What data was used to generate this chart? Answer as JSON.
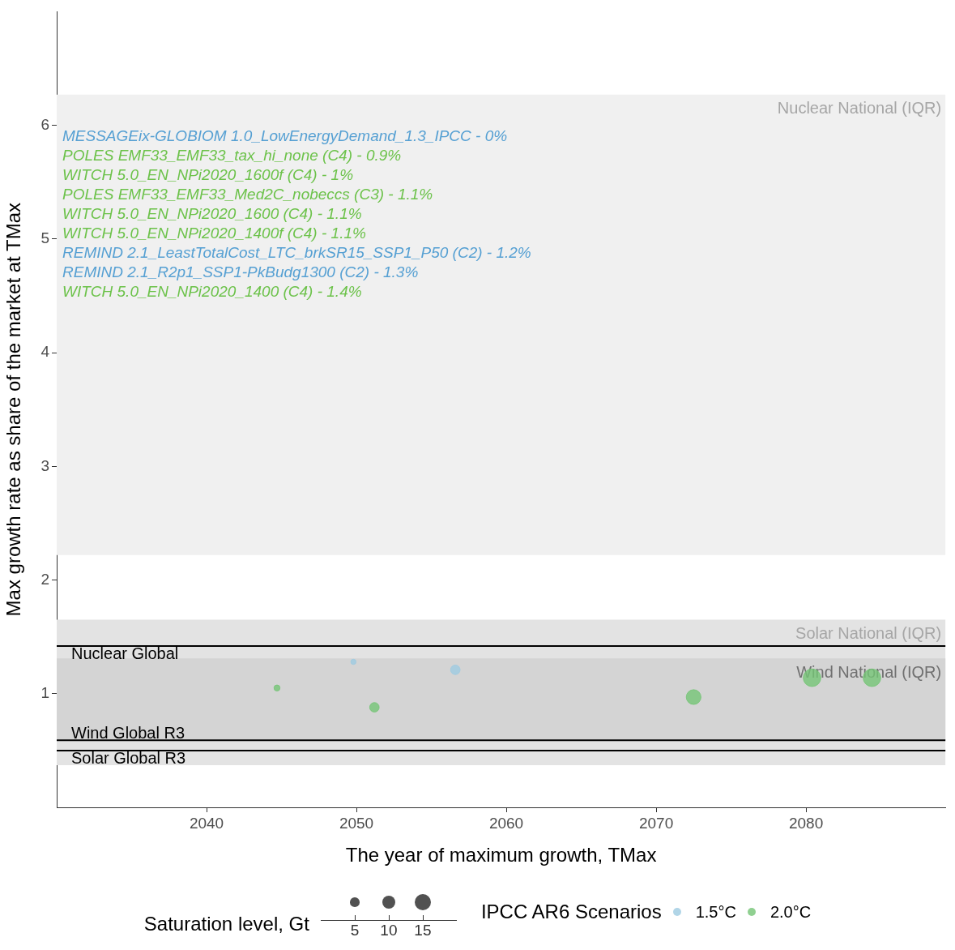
{
  "chart_data": {
    "type": "bubble",
    "xlabel": "The year of maximum growth, TMax",
    "ylabel": "Max growth rate as share of the market at TMax",
    "legend_title": "IPCC AR6 Scenarios",
    "legend": "bottom",
    "grid": false,
    "xlim": [
      2030,
      2089.3
    ],
    "xticks": [
      2040,
      2050,
      2060,
      2070,
      2080
    ],
    "ylim": [
      0,
      7
    ],
    "yticks": [
      1,
      2,
      3,
      4,
      5,
      6
    ],
    "size_legend": [
      5,
      10,
      15
    ],
    "series": [
      {
        "name": "1.5°C",
        "color": "#9ecae1",
        "x": [
          2049.8,
          2056.6
        ],
        "values": [
          1.28,
          1.21
        ],
        "sizes": [
          1.5,
          5
        ]
      },
      {
        "name": "2.0°C",
        "color": "#74c476",
        "x": [
          2044.7,
          2051.2,
          2072.5,
          2080.4,
          2084.4
        ],
        "values": [
          1.05,
          0.88,
          0.97,
          1.14,
          1.14
        ],
        "sizes": [
          2,
          5,
          12,
          17,
          17
        ]
      }
    ],
    "bands": [
      {
        "axis": "y",
        "from": 2.22,
        "to": 6.27,
        "label": "Nuclear National (IQR)",
        "color": "#f0f0f0"
      },
      {
        "axis": "y",
        "from": 0.37,
        "to": 1.65,
        "label": "Solar National (IQR)",
        "color": "#e3e3e3"
      },
      {
        "axis": "y",
        "from": 0.59,
        "to": 1.31,
        "label": "Wind National (IQR)",
        "color": "#d4d4d4"
      }
    ],
    "ref_lines": [
      {
        "axis": "y",
        "value": 1.42,
        "label": "Nuclear Global"
      },
      {
        "axis": "y",
        "value": 0.59,
        "label": "Wind Global R3"
      },
      {
        "axis": "y",
        "value": 0.5,
        "label": "Solar Global R3"
      }
    ],
    "annotations": [
      "MESSAGEix-GLOBIOM 1.0_LowEnergyDemand_1.3_IPCC - 0%",
      "POLES EMF33_EMF33_tax_hi_none (C4) - 0.9%",
      "WITCH 5.0_EN_NPi2020_1600f (C4) - 1%",
      "POLES EMF33_EMF33_Med2C_nobeccs (C3) - 1.1%",
      "WITCH 5.0_EN_NPi2020_1600 (C4) - 1.1%",
      "WITCH 5.0_EN_NPi2020_1400f (C4) - 1.1%",
      "REMIND 2.1_LeastTotalCost_LTC_brkSR15_SSP1_P50 (C2) - 1.2%",
      "REMIND 2.1_R2p1_SSP1-PkBudg1300 (C2) - 1.3%",
      "WITCH 5.0_EN_NPi2020_1400 (C4) - 1.4%",
      "Saturation level, Gt"
    ]
  }
}
